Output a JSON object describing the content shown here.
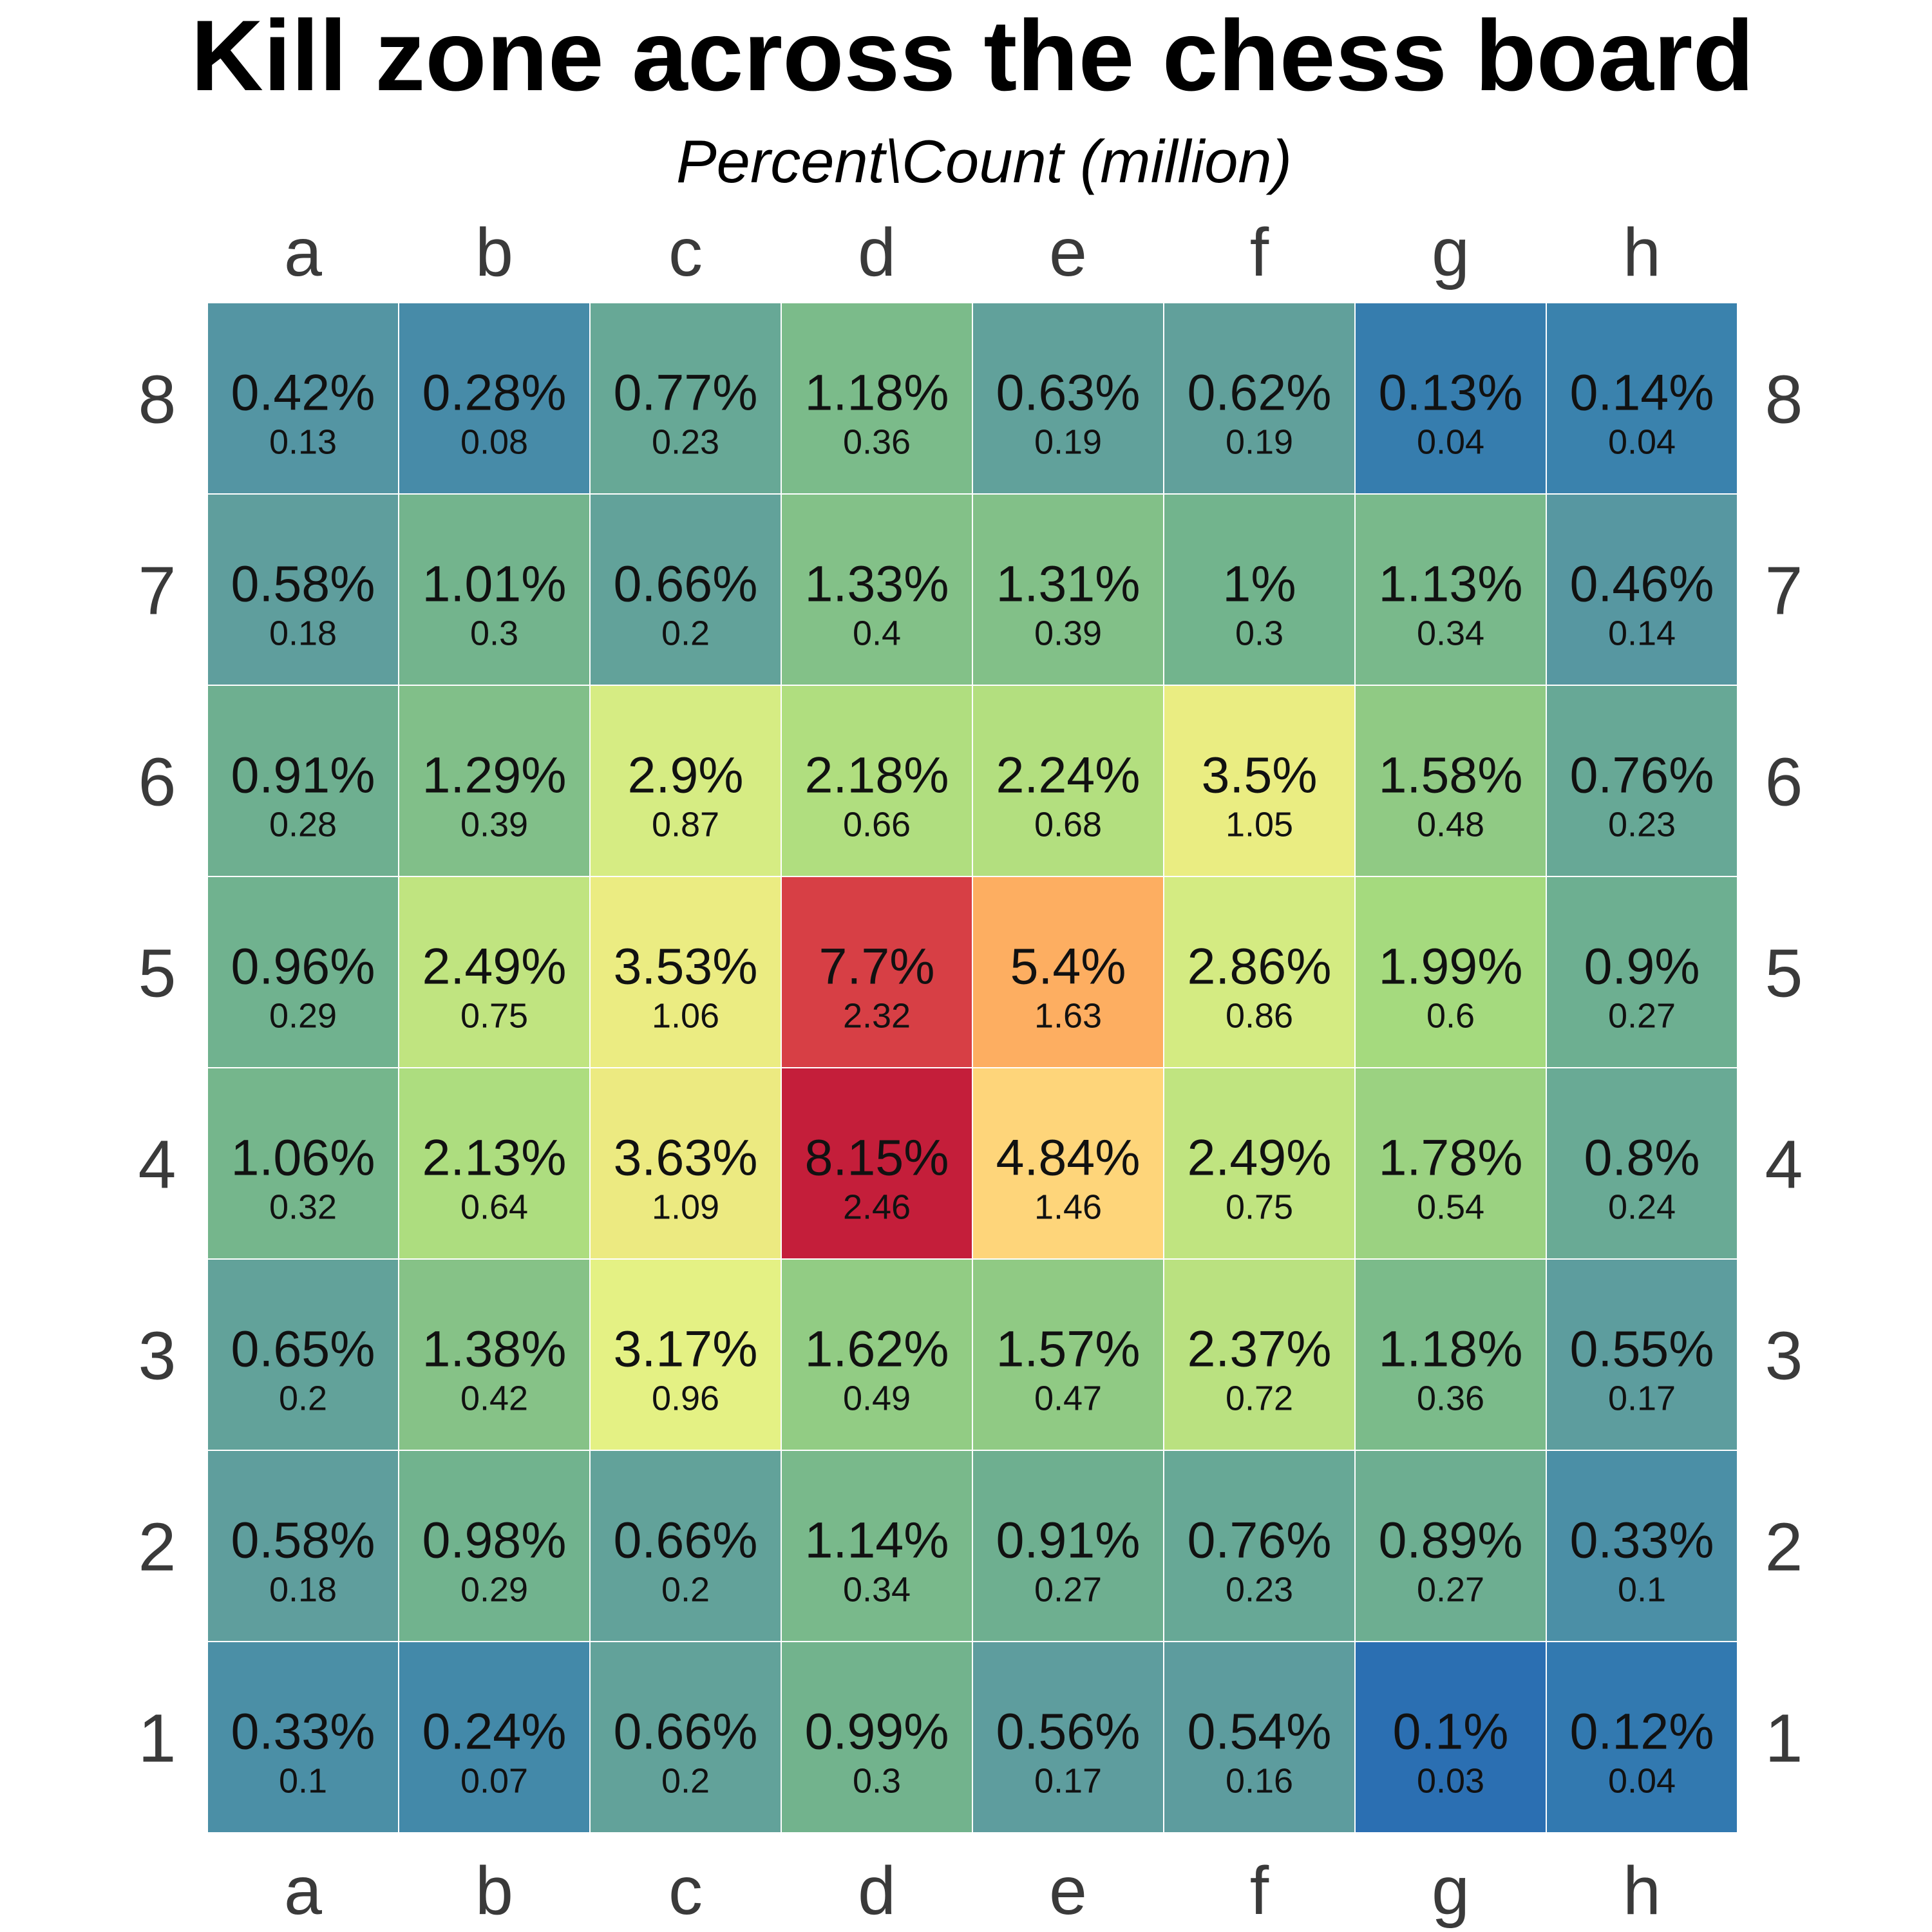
{
  "chart_data": {
    "type": "heatmap",
    "title": "Kill zone across the chess board",
    "subtitle": "Percent\\Count (million)",
    "files": [
      "a",
      "b",
      "c",
      "d",
      "e",
      "f",
      "g",
      "h"
    ],
    "ranks": [
      "8",
      "7",
      "6",
      "5",
      "4",
      "3",
      "2",
      "1"
    ],
    "percent_labels": [
      [
        "0.42%",
        "0.28%",
        "0.77%",
        "1.18%",
        "0.63%",
        "0.62%",
        "0.13%",
        "0.14%"
      ],
      [
        "0.58%",
        "1.01%",
        "0.66%",
        "1.33%",
        "1.31%",
        "1%",
        "1.13%",
        "0.46%"
      ],
      [
        "0.91%",
        "1.29%",
        "2.9%",
        "2.18%",
        "2.24%",
        "3.5%",
        "1.58%",
        "0.76%"
      ],
      [
        "0.96%",
        "2.49%",
        "3.53%",
        "7.7%",
        "5.4%",
        "2.86%",
        "1.99%",
        "0.9%"
      ],
      [
        "1.06%",
        "2.13%",
        "3.63%",
        "8.15%",
        "4.84%",
        "2.49%",
        "1.78%",
        "0.8%"
      ],
      [
        "0.65%",
        "1.38%",
        "3.17%",
        "1.62%",
        "1.57%",
        "2.37%",
        "1.18%",
        "0.55%"
      ],
      [
        "0.58%",
        "0.98%",
        "0.66%",
        "1.14%",
        "0.91%",
        "0.76%",
        "0.89%",
        "0.33%"
      ],
      [
        "0.33%",
        "0.24%",
        "0.66%",
        "0.99%",
        "0.56%",
        "0.54%",
        "0.1%",
        "0.12%"
      ]
    ],
    "percent_values": [
      [
        0.42,
        0.28,
        0.77,
        1.18,
        0.63,
        0.62,
        0.13,
        0.14
      ],
      [
        0.58,
        1.01,
        0.66,
        1.33,
        1.31,
        1.0,
        1.13,
        0.46
      ],
      [
        0.91,
        1.29,
        2.9,
        2.18,
        2.24,
        3.5,
        1.58,
        0.76
      ],
      [
        0.96,
        2.49,
        3.53,
        7.7,
        5.4,
        2.86,
        1.99,
        0.9
      ],
      [
        1.06,
        2.13,
        3.63,
        8.15,
        4.84,
        2.49,
        1.78,
        0.8
      ],
      [
        0.65,
        1.38,
        3.17,
        1.62,
        1.57,
        2.37,
        1.18,
        0.55
      ],
      [
        0.58,
        0.98,
        0.66,
        1.14,
        0.91,
        0.76,
        0.89,
        0.33
      ],
      [
        0.33,
        0.24,
        0.66,
        0.99,
        0.56,
        0.54,
        0.1,
        0.12
      ]
    ],
    "count_labels": [
      [
        "0.13",
        "0.08",
        "0.23",
        "0.36",
        "0.19",
        "0.19",
        "0.04",
        "0.04"
      ],
      [
        "0.18",
        "0.3",
        "0.2",
        "0.4",
        "0.39",
        "0.3",
        "0.34",
        "0.14"
      ],
      [
        "0.28",
        "0.39",
        "0.87",
        "0.66",
        "0.68",
        "1.05",
        "0.48",
        "0.23"
      ],
      [
        "0.29",
        "0.75",
        "1.06",
        "2.32",
        "1.63",
        "0.86",
        "0.6",
        "0.27"
      ],
      [
        "0.32",
        "0.64",
        "1.09",
        "2.46",
        "1.46",
        "0.75",
        "0.54",
        "0.24"
      ],
      [
        "0.2",
        "0.42",
        "0.96",
        "0.49",
        "0.47",
        "0.72",
        "0.36",
        "0.17"
      ],
      [
        "0.18",
        "0.29",
        "0.2",
        "0.34",
        "0.27",
        "0.23",
        "0.27",
        "0.1"
      ],
      [
        "0.1",
        "0.07",
        "0.2",
        "0.3",
        "0.17",
        "0.16",
        "0.03",
        "0.04"
      ]
    ],
    "color_scale": {
      "name": "Spectral (reversed)",
      "stops": [
        "#2b6fb2",
        "#3a82ad",
        "#5b9aa0",
        "#72b48d",
        "#a6da7e",
        "#e6f284",
        "#fed57a",
        "#fdae61",
        "#d73f45",
        "#c41e3a"
      ]
    },
    "grid": false,
    "legend": "none"
  }
}
